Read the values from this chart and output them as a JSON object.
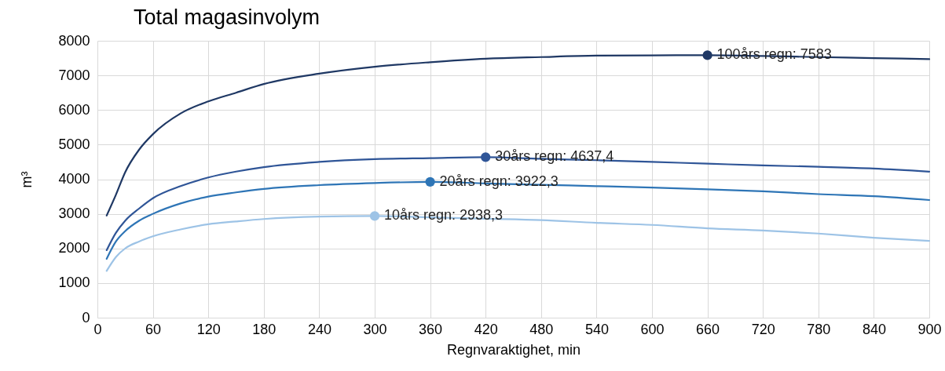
{
  "chart_data": {
    "type": "line",
    "title": "Total magasinvolym",
    "xlabel": "Regnvaraktighet, min",
    "ylabel": "m³",
    "xlim": [
      0,
      900
    ],
    "xticks": [
      0,
      60,
      120,
      180,
      240,
      300,
      360,
      420,
      480,
      540,
      600,
      660,
      720,
      780,
      840,
      900
    ],
    "ylim": [
      0,
      8000
    ],
    "yticks": [
      0,
      1000,
      2000,
      3000,
      4000,
      5000,
      6000,
      7000,
      8000
    ],
    "grid": true,
    "legend": false,
    "marker": "none",
    "line_style": "solid",
    "x": [
      10,
      20,
      30,
      45,
      60,
      90,
      120,
      150,
      180,
      240,
      300,
      360,
      420,
      480,
      540,
      600,
      660,
      720,
      780,
      840,
      900
    ],
    "series": [
      {
        "color": "#1f3864",
        "values": [
          2950,
          3550,
          4200,
          4850,
          5300,
          5900,
          6250,
          6500,
          6750,
          7050,
          7250,
          7380,
          7480,
          7530,
          7570,
          7580,
          7583,
          7560,
          7530,
          7500,
          7470
        ]
      },
      {
        "color": "#2f5597",
        "values": [
          1950,
          2450,
          2800,
          3150,
          3450,
          3800,
          4050,
          4220,
          4350,
          4500,
          4580,
          4610,
          4637.4,
          4590,
          4550,
          4500,
          4450,
          4400,
          4360,
          4310,
          4220
        ]
      },
      {
        "color": "#2e75b6",
        "values": [
          1700,
          2200,
          2500,
          2800,
          3000,
          3300,
          3500,
          3620,
          3720,
          3830,
          3890,
          3922.3,
          3880,
          3840,
          3800,
          3760,
          3710,
          3650,
          3570,
          3510,
          3400
        ]
      },
      {
        "color": "#9dc3e6",
        "values": [
          1350,
          1750,
          2000,
          2200,
          2350,
          2550,
          2700,
          2780,
          2850,
          2920,
          2938.3,
          2900,
          2860,
          2820,
          2740,
          2680,
          2580,
          2520,
          2430,
          2310,
          2220
        ]
      }
    ],
    "annotations": [
      {
        "text": "100års regn: 7583",
        "x": 660,
        "y": 7583
      },
      {
        "text": "30års regn: 4637,4",
        "x": 420,
        "y": 4637.4
      },
      {
        "text": "20års regn: 3922,3",
        "x": 360,
        "y": 3922.3
      },
      {
        "text": "10års regn: 2938,3",
        "x": 300,
        "y": 2938.3
      }
    ]
  }
}
